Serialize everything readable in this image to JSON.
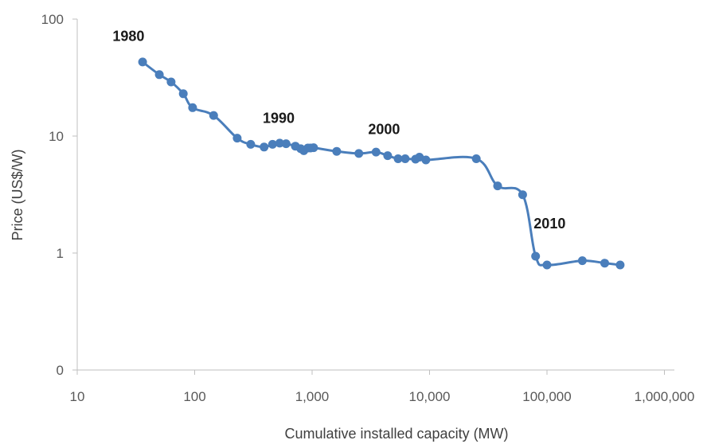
{
  "chart_data": {
    "type": "line",
    "title": "",
    "xlabel": "Cumulative installed capacity (MW)",
    "ylabel": "Price (US$/W)",
    "x_scale": "log",
    "y_scale": "log",
    "xlim": [
      10,
      1000000
    ],
    "x_ticks": [
      10,
      100,
      1000,
      10000,
      100000,
      1000000
    ],
    "x_tick_labels": [
      "10",
      "100",
      "1,000",
      "10,000",
      "100,000",
      "1,000,000"
    ],
    "y_ticks": [
      0.1,
      1,
      10,
      100
    ],
    "y_tick_labels": [
      "0",
      "1",
      "10",
      "100"
    ],
    "grid": false,
    "legend": "none",
    "line_color": "#4a7ebb",
    "marker_color": "#4a7ebb",
    "annotations": [
      {
        "text": "1980",
        "x": 20,
        "y": 65
      },
      {
        "text": "1990",
        "x": 380,
        "y": 13
      },
      {
        "text": "2000",
        "x": 3000,
        "y": 10.4
      },
      {
        "text": "2010",
        "x": 77000,
        "y": 1.62
      }
    ],
    "series": [
      {
        "x": [
          36,
          50,
          63,
          80,
          96,
          145,
          230,
          300,
          390,
          460,
          530,
          600,
          720,
          800,
          850,
          920,
          970,
          1030,
          1620,
          2500,
          3500,
          4400,
          5400,
          6200,
          7600,
          8200,
          9300,
          25000,
          38000,
          62000,
          80000,
          100000,
          200000,
          310000,
          420000
        ],
        "y": [
          43,
          33.5,
          29,
          23,
          17.5,
          15,
          9.6,
          8.5,
          8.05,
          8.5,
          8.7,
          8.6,
          8.2,
          7.8,
          7.5,
          7.9,
          7.9,
          7.95,
          7.4,
          7.1,
          7.3,
          6.8,
          6.4,
          6.4,
          6.35,
          6.6,
          6.25,
          6.4,
          3.75,
          3.15,
          0.94,
          0.79,
          0.86,
          0.82,
          0.79
        ]
      }
    ]
  }
}
